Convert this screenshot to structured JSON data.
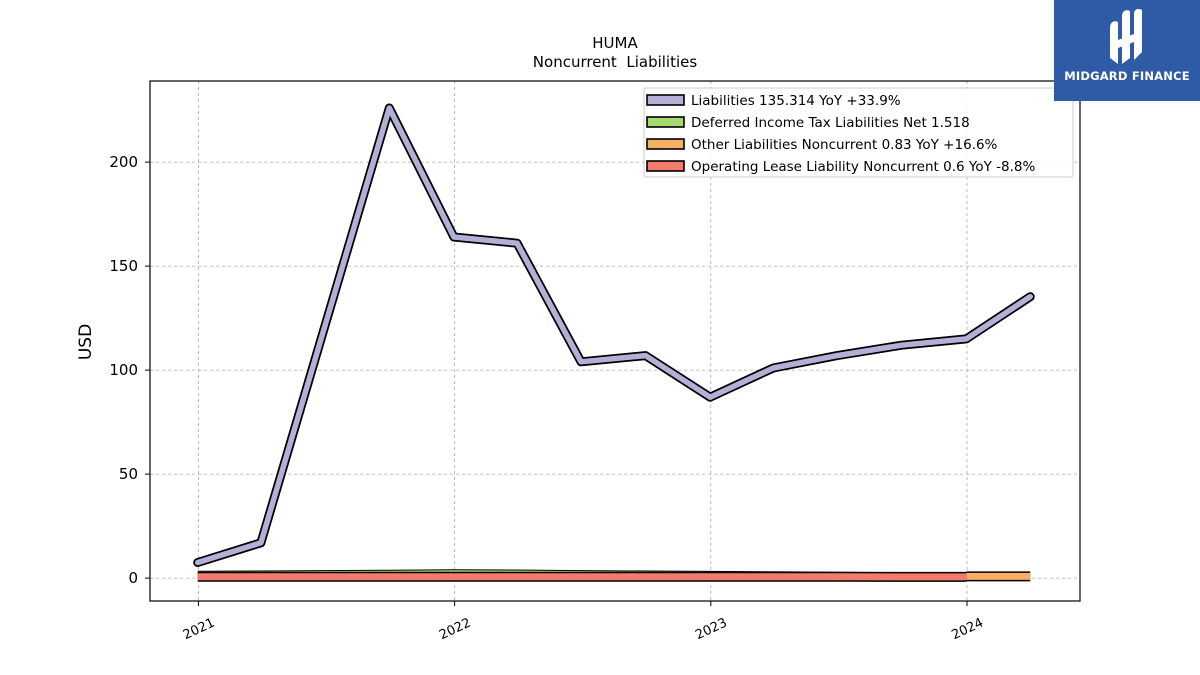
{
  "brand": {
    "name": "MIDGARD FINANCE",
    "logo_icon": "midgard-h-logo-icon",
    "bg_color": "#2f5aa6"
  },
  "chart_data": {
    "type": "line",
    "title": "HUMA",
    "subtitle": "Noncurrent  Liabilities",
    "xlabel": "",
    "ylabel": "USD",
    "x_ticks": [
      "2021",
      "2022",
      "2023",
      "2024"
    ],
    "y_ticks": [
      "0",
      "50",
      "100",
      "150",
      "200"
    ],
    "xlim": [
      "2020-10-24",
      "2024-06-10"
    ],
    "ylim": [
      -11,
      239
    ],
    "grid": true,
    "legend_position": "top-right",
    "series": [
      {
        "name": "Liabilities",
        "legend": "Liabilities  135.314 YoY +33.9%",
        "color": "#b3b0d8",
        "x": [
          "2020-12-31",
          "2021-03-31",
          "2021-06-30",
          "2021-09-30",
          "2021-12-31",
          "2022-03-31",
          "2022-06-30",
          "2022-09-30",
          "2022-12-31",
          "2023-03-31",
          "2023-06-30",
          "2023-09-30",
          "2023-12-31",
          "2024-03-31"
        ],
        "values": [
          7.5,
          17,
          121,
          226,
          164,
          161,
          104,
          107,
          87,
          101,
          107,
          112,
          115,
          135.3
        ]
      },
      {
        "name": "Deferred Income Tax Liabilities Net",
        "legend": "Deferred Income Tax Liabilities Net  1.518",
        "color": "#a6d86e",
        "x": [
          "2020-12-31",
          "2021-03-31",
          "2021-06-30",
          "2021-09-30",
          "2021-12-31",
          "2022-03-31",
          "2022-06-30",
          "2022-09-30",
          "2022-12-31",
          "2023-03-31",
          "2023-06-30",
          "2023-09-30",
          "2023-12-31"
        ],
        "values": [
          2.6,
          2.7,
          2.9,
          3.1,
          3.3,
          3.2,
          2.9,
          2.7,
          2.5,
          2.3,
          2.1,
          1.9,
          1.5
        ]
      },
      {
        "name": "Other Liabilities Noncurrent",
        "legend": "Other Liabilities Noncurrent  0.83 YoY +16.6%",
        "color": "#f5b066",
        "x": [
          "2023-12-31",
          "2024-03-31"
        ],
        "values": [
          0.83,
          0.83
        ]
      },
      {
        "name": "Operating Lease Liability Noncurrent",
        "legend": "Operating Lease Liability Noncurrent  0.6 YoY -8.8%",
        "color": "#f27b6e",
        "x": [
          "2020-12-31",
          "2021-03-31",
          "2021-06-30",
          "2021-09-30",
          "2021-12-31",
          "2022-03-31",
          "2022-06-30",
          "2022-09-30",
          "2022-12-31",
          "2023-03-31",
          "2023-06-30",
          "2023-09-30",
          "2023-12-31"
        ],
        "values": [
          0.65,
          0.65,
          0.65,
          0.65,
          0.65,
          0.65,
          0.65,
          0.65,
          0.65,
          0.65,
          0.62,
          0.6,
          0.6
        ]
      }
    ]
  }
}
